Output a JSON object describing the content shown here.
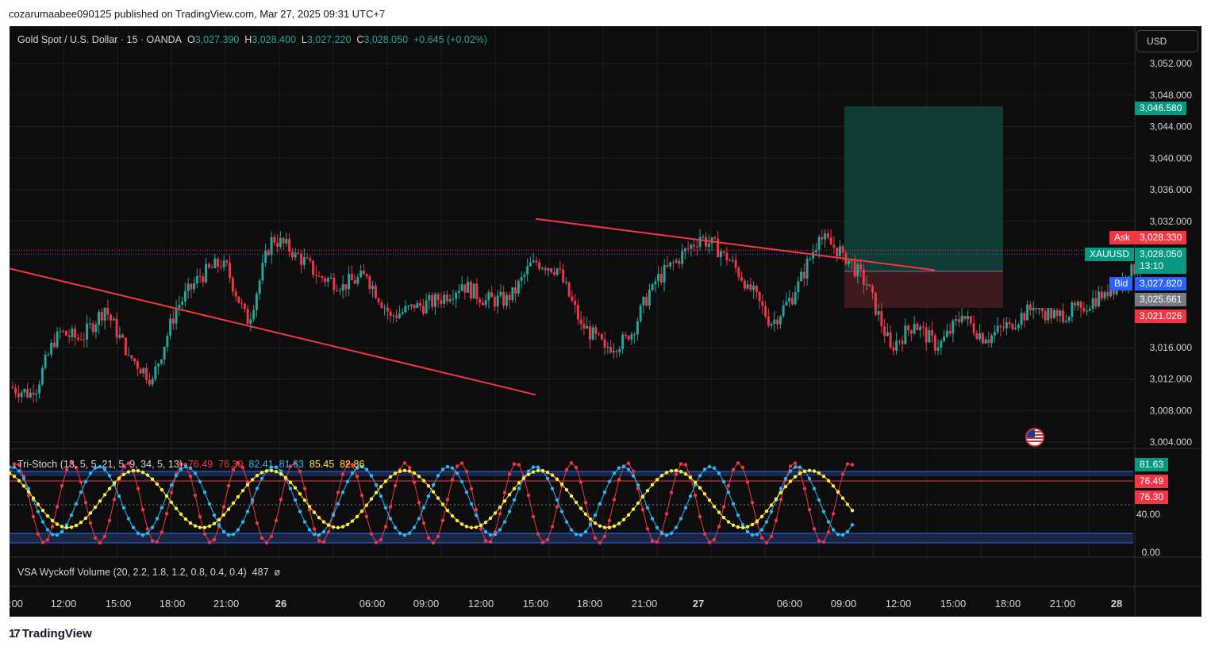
{
  "topbar": {
    "caption": "cozarumaabee090125 published on TradingView.com, Mar 27, 2025 09:31 UTC+7"
  },
  "legend": {
    "title": "Gold Spot / U.S. Dollar · 15 · OANDA",
    "o_label": "O",
    "o": "3,027.390",
    "h_label": "H",
    "h": "3,028.400",
    "l_label": "L",
    "l": "3,027.220",
    "c_label": "C",
    "c": "3,028.050",
    "change": "+0.645 (+0.02%)"
  },
  "currency": "USD",
  "price_axis": {
    "labels": [
      "3,052.000",
      "3,048.000",
      "3,044.000",
      "3,040.000",
      "3,036.000",
      "3,032.000",
      "3,016.000",
      "3,012.000",
      "3,008.000",
      "3,004.000"
    ],
    "values": [
      3052,
      3048,
      3044,
      3040,
      3036,
      3032,
      3016,
      3012,
      3008,
      3004
    ]
  },
  "price_tags": {
    "target": "3,046.580",
    "ask_label": "Ask",
    "ask": "3,028.330",
    "symbol": "XAUUSD",
    "last": "3,028.050",
    "countdown": "13:10",
    "bid_label": "Bid",
    "bid": "3,027.820",
    "entry": "3,025.661",
    "stop": "3,021.026"
  },
  "stoch": {
    "name": "Tri-Stoch (13, 5, 5, 21, 5, 9, 34, 5, 13)",
    "v1": "76.49",
    "v2": "76.30",
    "v3": "82.41",
    "v4": "81.63",
    "v5": "85.45",
    "v6": "82.86",
    "axis": [
      "40.00",
      "0.00"
    ],
    "tags": [
      "81.63",
      "76.49",
      "76.30"
    ]
  },
  "vsa": {
    "name": "VSA Wyckoff Volume (20, 2.2, 1.8, 1.2, 0.8, 0.4, 0.4)",
    "value": "487",
    "symbol": "ø"
  },
  "time_axis": {
    "labels": [
      ":00",
      "12:00",
      "15:00",
      "18:00",
      "21:00",
      "26",
      "06:00",
      "09:00",
      "12:00",
      "15:00",
      "18:00",
      "21:00",
      "27",
      "06:00",
      "09:00",
      "12:00",
      "15:00",
      "18:00",
      "21:00",
      "28"
    ]
  },
  "brand": "TradingView",
  "colors": {
    "up": "#26a69a",
    "down": "#f23645",
    "trend": "#f23645",
    "bg": "#0d0d0d"
  },
  "chart_data": {
    "type": "candlestick",
    "title": "Gold Spot / U.S. Dollar · 15 · OANDA",
    "xlabel": "",
    "ylabel": "",
    "ylim": [
      3001,
      3058
    ],
    "timeframe": "15",
    "ohlc_anchor": [
      [
        0,
        3011,
        3012,
        3009,
        3010
      ],
      [
        8,
        3010,
        3019,
        3009,
        3018
      ],
      [
        16,
        3018,
        3021,
        3016,
        3017
      ],
      [
        24,
        3017,
        3023,
        3016,
        3021
      ],
      [
        32,
        3021,
        3024,
        3015,
        3015
      ],
      [
        40,
        3015,
        3017,
        3011,
        3012
      ],
      [
        48,
        3012,
        3022,
        3011,
        3021
      ],
      [
        56,
        3021,
        3026,
        3020,
        3025
      ],
      [
        64,
        3025,
        3028,
        3023,
        3027
      ],
      [
        72,
        3027,
        3031,
        3015,
        3019
      ],
      [
        80,
        3019,
        3034,
        3018,
        3030
      ],
      [
        88,
        3030,
        3036,
        3027,
        3028
      ],
      [
        96,
        3028,
        3030,
        3024,
        3025
      ],
      [
        104,
        3025,
        3026,
        3021,
        3024
      ],
      [
        112,
        3024,
        3027,
        3022,
        3025
      ],
      [
        120,
        3025,
        3026,
        3019,
        3020
      ],
      [
        128,
        3020,
        3022,
        3019,
        3021
      ],
      [
        136,
        3021,
        3023,
        3020,
        3022
      ],
      [
        144,
        3022,
        3025,
        3021,
        3024
      ],
      [
        152,
        3024,
        3025,
        3021,
        3022
      ],
      [
        160,
        3022,
        3024,
        3020,
        3022
      ],
      [
        168,
        3022,
        3028,
        3021,
        3027
      ],
      [
        176,
        3027,
        3030,
        3025,
        3026
      ],
      [
        184,
        3026,
        3027,
        3018,
        3019
      ],
      [
        192,
        3019,
        3020,
        3014,
        3016
      ],
      [
        200,
        3016,
        3018,
        3014,
        3017
      ],
      [
        208,
        3017,
        3025,
        3016,
        3024
      ],
      [
        216,
        3024,
        3028,
        3023,
        3027
      ],
      [
        224,
        3027,
        3033,
        3026,
        3030
      ],
      [
        232,
        3030,
        3031,
        3026,
        3028
      ],
      [
        240,
        3028,
        3029,
        3022,
        3024
      ],
      [
        248,
        3024,
        3025,
        3018,
        3019
      ],
      [
        256,
        3019,
        3024,
        3018,
        3023
      ],
      [
        264,
        3023,
        3031,
        3022,
        3030
      ],
      [
        272,
        3030,
        3031,
        3026,
        3028
      ],
      [
        280,
        3028,
        3029,
        3022,
        3024
      ],
      [
        288,
        3024,
        3025,
        3014,
        3016
      ],
      [
        296,
        3016,
        3020,
        3015,
        3019
      ],
      [
        304,
        3019,
        3020,
        3015,
        3016
      ],
      [
        312,
        3016,
        3021,
        3015,
        3020
      ],
      [
        320,
        3020,
        3022,
        3016,
        3017
      ],
      [
        328,
        3017,
        3020,
        3016,
        3019
      ],
      [
        336,
        3019,
        3022,
        3018,
        3021
      ],
      [
        344,
        3021,
        3021,
        3019,
        3020
      ],
      [
        352,
        3020,
        3022,
        3019,
        3021
      ],
      [
        360,
        3021,
        3025,
        3020,
        3023
      ],
      [
        368,
        3023,
        3026,
        3022,
        3025
      ],
      [
        376,
        3025,
        3028,
        3024,
        3027
      ],
      [
        380,
        3027,
        3028,
        3026,
        3028
      ]
    ],
    "trendlines": [
      {
        "from": [
          0,
          3026
        ],
        "to": [
          220,
          3010
        ]
      },
      {
        "from": [
          220,
          3032.3
        ],
        "to": [
          385,
          3025.8
        ]
      }
    ],
    "position": {
      "entry": 3025.661,
      "target": 3046.58,
      "stop": 3021.026
    },
    "stoch": {
      "overbought": 80,
      "oversold": 20,
      "middle": 50,
      "ylim": [
        -10,
        110
      ]
    }
  }
}
